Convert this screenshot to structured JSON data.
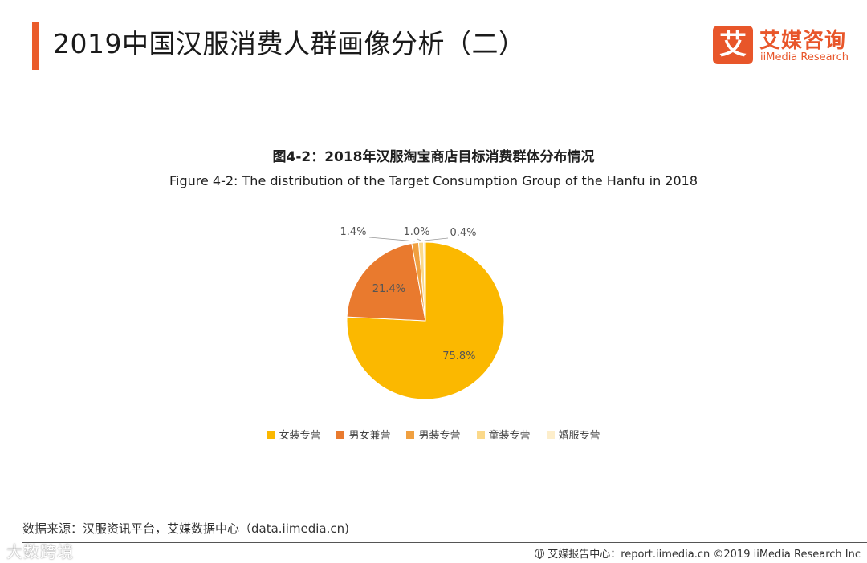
{
  "header": {
    "title": "2019中国汉服消费人群画像分析（二）",
    "accent_color": "#ea5c2b"
  },
  "logo": {
    "mark": "艾",
    "cn": "艾媒咨询",
    "en": "iiMedia Research"
  },
  "chart_data": {
    "type": "pie",
    "title": "图4-2：2018年汉服淘宝商店目标消费群体分布情况",
    "subtitle": "Figure 4-2: The distribution of the Target Consumption Group of the Hanfu in 2018",
    "categories": [
      "女装专营",
      "男女兼营",
      "男装专营",
      "童装专营",
      "婚服专营"
    ],
    "values": [
      75.8,
      21.4,
      1.4,
      1.0,
      0.4
    ],
    "labels": [
      "75.8%",
      "21.4%",
      "1.4%",
      "1.0%",
      "0.4%"
    ],
    "colors": [
      "#fbb800",
      "#e97a2e",
      "#f0a040",
      "#fbd98a",
      "#fdeecb"
    ],
    "legend_position": "bottom"
  },
  "source": "数据来源：汉服资讯平台，艾媒数据中心（data.iimedia.cn)",
  "watermark": "大数跨境",
  "footer": {
    "text": "艾媒报告中心：report.iimedia.cn  ©2019  iiMedia Research  Inc",
    "icon": "globe-icon"
  }
}
